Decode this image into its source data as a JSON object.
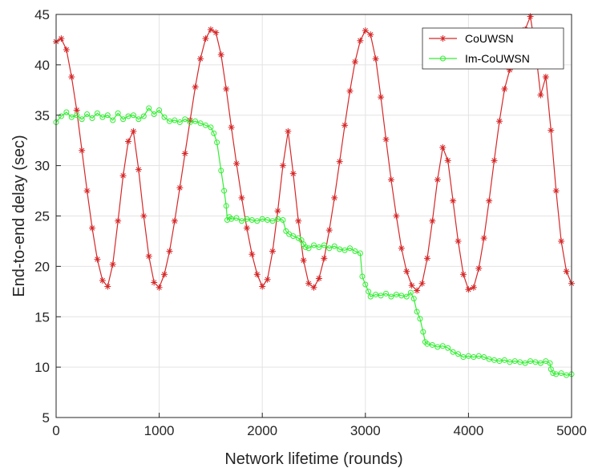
{
  "chart_data": {
    "type": "line",
    "title": "",
    "xlabel": "Network lifetime (rounds)",
    "ylabel": "End-to-end delay (sec)",
    "xlim": [
      0,
      5000
    ],
    "ylim": [
      5,
      45
    ],
    "x_ticks": [
      0,
      1000,
      2000,
      3000,
      4000,
      5000
    ],
    "y_ticks": [
      5,
      10,
      15,
      20,
      25,
      30,
      35,
      40,
      45
    ],
    "grid": true,
    "legend_position": "top-right",
    "series": [
      {
        "name": "CoUWSN",
        "color": "#d62728",
        "marker": "star",
        "x": [
          0,
          50,
          100,
          150,
          200,
          250,
          300,
          350,
          400,
          450,
          500,
          550,
          600,
          650,
          700,
          750,
          800,
          850,
          900,
          950,
          1000,
          1050,
          1100,
          1150,
          1200,
          1250,
          1300,
          1350,
          1400,
          1450,
          1500,
          1550,
          1600,
          1650,
          1700,
          1750,
          1800,
          1850,
          1900,
          1950,
          2000,
          2050,
          2100,
          2150,
          2200,
          2250,
          2300,
          2350,
          2400,
          2450,
          2500,
          2550,
          2600,
          2650,
          2700,
          2750,
          2800,
          2850,
          2900,
          2950,
          3000,
          3050,
          3100,
          3150,
          3200,
          3250,
          3300,
          3350,
          3400,
          3450,
          3500,
          3550,
          3600,
          3650,
          3700,
          3750,
          3800,
          3850,
          3900,
          3950,
          4000,
          4050,
          4100,
          4150,
          4200,
          4250,
          4300,
          4350,
          4400,
          4450,
          4500,
          4550,
          4600,
          4650,
          4700,
          4750,
          4800,
          4850,
          4900,
          4950,
          5000
        ],
        "y": [
          42.3,
          42.6,
          41.5,
          38.8,
          35.5,
          31.5,
          27.5,
          23.8,
          20.7,
          18.6,
          18.0,
          20.2,
          24.5,
          29.0,
          32.4,
          33.4,
          29.6,
          25.0,
          21.0,
          18.4,
          17.9,
          19.2,
          21.5,
          24.5,
          27.8,
          31.2,
          34.5,
          37.8,
          40.6,
          42.6,
          43.5,
          43.2,
          41.0,
          37.6,
          33.8,
          30.2,
          26.8,
          23.8,
          21.2,
          19.2,
          18.0,
          18.7,
          21.5,
          25.5,
          30.0,
          33.4,
          29.2,
          24.5,
          20.6,
          18.3,
          17.9,
          18.8,
          20.8,
          23.6,
          26.8,
          30.4,
          34.0,
          37.4,
          40.3,
          42.4,
          43.4,
          43.0,
          40.6,
          36.8,
          32.6,
          28.6,
          25.0,
          21.8,
          19.5,
          18.1,
          17.6,
          18.3,
          20.8,
          24.5,
          28.6,
          31.8,
          30.5,
          26.5,
          22.5,
          19.2,
          17.7,
          17.9,
          19.8,
          22.8,
          26.5,
          30.5,
          34.4,
          37.6,
          39.5,
          40.8,
          42.0,
          43.5,
          44.8,
          41.5,
          37.0,
          38.8,
          33.5,
          27.5,
          22.5,
          19.5,
          18.3
        ]
      },
      {
        "name": "Im-CoUWSN",
        "color": "#33ee33",
        "marker": "circle",
        "x": [
          0,
          50,
          100,
          150,
          200,
          250,
          300,
          350,
          400,
          450,
          500,
          550,
          600,
          650,
          700,
          750,
          800,
          850,
          900,
          950,
          1000,
          1050,
          1100,
          1150,
          1200,
          1250,
          1300,
          1350,
          1400,
          1450,
          1500,
          1530,
          1560,
          1600,
          1630,
          1650,
          1660,
          1680,
          1700,
          1750,
          1800,
          1850,
          1900,
          1950,
          2000,
          2050,
          2100,
          2150,
          2200,
          2230,
          2260,
          2300,
          2350,
          2380,
          2400,
          2420,
          2450,
          2500,
          2550,
          2600,
          2650,
          2700,
          2750,
          2800,
          2850,
          2900,
          2950,
          2970,
          3000,
          3030,
          3050,
          3100,
          3150,
          3200,
          3250,
          3300,
          3350,
          3400,
          3440,
          3470,
          3500,
          3530,
          3560,
          3580,
          3600,
          3650,
          3700,
          3750,
          3800,
          3850,
          3900,
          3950,
          4000,
          4050,
          4100,
          4150,
          4200,
          4250,
          4300,
          4350,
          4400,
          4450,
          4500,
          4550,
          4600,
          4650,
          4700,
          4750,
          4790,
          4800,
          4820,
          4850,
          4900,
          4950,
          5000
        ],
        "y": [
          34.3,
          34.9,
          35.3,
          34.8,
          35.0,
          34.6,
          35.1,
          34.7,
          35.2,
          34.8,
          35.0,
          34.5,
          35.2,
          34.6,
          34.9,
          35.0,
          34.6,
          34.9,
          35.7,
          35.1,
          35.5,
          34.8,
          34.4,
          34.5,
          34.3,
          34.6,
          34.3,
          34.4,
          34.2,
          34.0,
          33.8,
          33.2,
          32.3,
          29.5,
          27.5,
          26.0,
          24.6,
          24.9,
          24.7,
          24.8,
          24.5,
          24.7,
          24.6,
          24.5,
          24.7,
          24.6,
          24.5,
          24.7,
          24.6,
          23.5,
          23.2,
          23.0,
          22.8,
          22.6,
          22.2,
          21.9,
          21.8,
          22.1,
          21.9,
          22.1,
          21.8,
          22.0,
          21.7,
          21.6,
          21.8,
          21.5,
          21.3,
          19.0,
          18.2,
          17.5,
          17.0,
          17.2,
          17.1,
          17.3,
          17.0,
          17.2,
          17.1,
          17.0,
          17.4,
          16.8,
          15.5,
          14.8,
          13.5,
          12.5,
          12.3,
          12.2,
          12.0,
          12.1,
          11.9,
          11.5,
          11.3,
          11.0,
          11.1,
          11.0,
          11.1,
          11.0,
          10.8,
          10.7,
          10.6,
          10.7,
          10.5,
          10.6,
          10.5,
          10.4,
          10.6,
          10.5,
          10.4,
          10.6,
          10.4,
          9.8,
          9.4,
          9.3,
          9.4,
          9.2,
          9.3
        ]
      }
    ]
  }
}
